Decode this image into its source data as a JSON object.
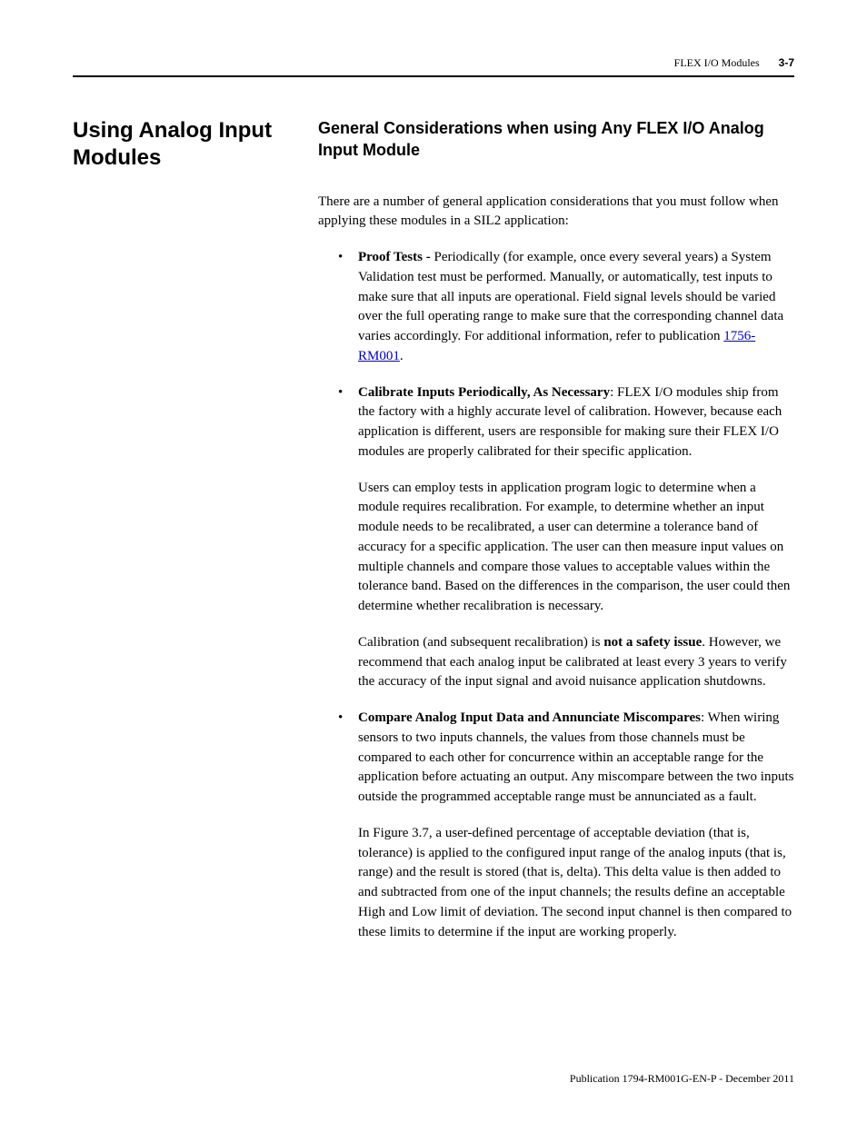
{
  "header": {
    "doc_section": "FLEX I/O Modules",
    "page_number": "3-7"
  },
  "left": {
    "section_title": "Using Analog Input Modules"
  },
  "right": {
    "subsection_title": "General Considerations when using Any FLEX I/O Analog Input Module",
    "intro": "There are a number of general application considerations that you must follow when applying these modules in a SIL2 application:",
    "bullets": [
      {
        "lead_bold": "Proof Tests - ",
        "text_after": "Periodically (for example, once every several years) a System Validation test must be performed. Manually, or automatically, test inputs to make sure that all inputs are operational. Field signal levels should be varied over the full operating range to make sure that the corresponding channel data varies accordingly. For additional information, refer to publication ",
        "link_text": "1756-RM001",
        "tail": "."
      },
      {
        "lead_bold": "Calibrate Inputs Periodically, As Necessary",
        "text_after": ": FLEX I/O modules ship from the factory with a highly accurate level of calibration. However, because each application is different, users are responsible for making sure their FLEX I/O modules are properly calibrated for their specific application.",
        "para2": "Users can employ tests in application program logic to determine when a module requires recalibration. For example, to determine whether an input module needs to be recalibrated, a user can determine a tolerance band of accuracy for a specific application. The user can then measure input values on multiple channels and compare those values to acceptable values within the tolerance band. Based on the differences in the comparison, the user could then determine whether recalibration is necessary.",
        "para3_pre": "Calibration (and subsequent recalibration) is ",
        "para3_bold": "not a safety issue",
        "para3_post": ". However, we recommend that each analog input be calibrated at least every 3 years to verify the accuracy of the input signal and avoid nuisance application shutdowns."
      },
      {
        "lead_bold": "Compare Analog Input Data and Annunciate Miscompares",
        "text_after": ": When wiring sensors to two inputs channels, the values from those channels must be compared to each other for concurrence within an acceptable range for the application before actuating an output. Any miscompare between the two inputs outside the programmed acceptable range must be annunciated as a fault.",
        "para2": "In Figure 3.7, a user-defined percentage of acceptable deviation (that is, tolerance) is applied to the configured input range of the analog inputs (that is, range) and the result is stored (that is, delta). This delta value is then added to and subtracted from one of the input channels; the results define an acceptable High and Low limit of deviation. The second input channel is then compared to these limits to determine if the input are working properly."
      }
    ]
  },
  "footer": {
    "text": "Publication 1794-RM001G-EN-P - December 2011"
  }
}
